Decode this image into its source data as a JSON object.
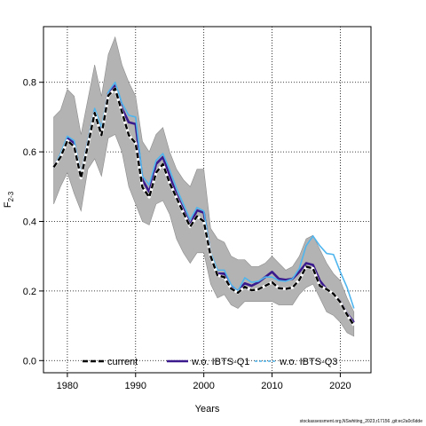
{
  "chart_data": {
    "type": "line",
    "xlabel": "Years",
    "ylabel": "F",
    "ylabel_sub": "2-3",
    "xlim": [
      1976.5,
      2024.5
    ],
    "ylim": [
      -0.035,
      0.96
    ],
    "xticks": [
      1980,
      1990,
      2000,
      2010,
      2020
    ],
    "yticks": [
      0.0,
      0.2,
      0.4,
      0.6,
      0.8
    ],
    "ytick_labels": [
      "0.0",
      "0.2",
      "0.4",
      "0.6",
      "0.8"
    ],
    "grid": true,
    "legend_position": "bottom",
    "x": [
      1978,
      1979,
      1980,
      1981,
      1982,
      1983,
      1984,
      1985,
      1986,
      1987,
      1988,
      1989,
      1990,
      1991,
      1992,
      1993,
      1994,
      1995,
      1996,
      1997,
      1998,
      1999,
      2000,
      2001,
      2002,
      2003,
      2004,
      2005,
      2006,
      2007,
      2008,
      2009,
      2010,
      2011,
      2012,
      2013,
      2014,
      2015,
      2016,
      2017,
      2018,
      2019,
      2020,
      2021,
      2022
    ],
    "band": {
      "upper": [
        0.7,
        0.72,
        0.78,
        0.76,
        0.65,
        0.75,
        0.85,
        0.76,
        0.88,
        0.93,
        0.85,
        0.8,
        0.76,
        0.63,
        0.6,
        0.65,
        0.67,
        0.6,
        0.55,
        0.52,
        0.5,
        0.55,
        0.55,
        0.38,
        0.35,
        0.34,
        0.3,
        0.29,
        0.29,
        0.27,
        0.27,
        0.28,
        0.3,
        0.28,
        0.26,
        0.27,
        0.3,
        0.35,
        0.36,
        0.32,
        0.28,
        0.25,
        0.23,
        0.18,
        0.14
      ],
      "lower": [
        0.45,
        0.5,
        0.54,
        0.48,
        0.43,
        0.55,
        0.58,
        0.53,
        0.64,
        0.65,
        0.6,
        0.5,
        0.45,
        0.4,
        0.39,
        0.45,
        0.46,
        0.42,
        0.35,
        0.31,
        0.28,
        0.31,
        0.31,
        0.22,
        0.18,
        0.19,
        0.16,
        0.15,
        0.17,
        0.17,
        0.17,
        0.17,
        0.17,
        0.16,
        0.16,
        0.16,
        0.19,
        0.21,
        0.22,
        0.18,
        0.14,
        0.13,
        0.11,
        0.08,
        0.07
      ]
    },
    "series": [
      {
        "name": "current",
        "color": "#000000",
        "style": "dashed",
        "values": [
          0.556,
          0.585,
          0.632,
          0.615,
          0.525,
          0.618,
          0.712,
          0.648,
          0.762,
          0.782,
          0.715,
          0.648,
          0.625,
          0.498,
          0.47,
          0.54,
          0.565,
          0.51,
          0.468,
          0.425,
          0.385,
          0.415,
          0.4,
          0.3,
          0.245,
          0.24,
          0.207,
          0.195,
          0.212,
          0.202,
          0.205,
          0.215,
          0.225,
          0.208,
          0.206,
          0.21,
          0.232,
          0.27,
          0.265,
          0.215,
          0.205,
          0.192,
          0.168,
          0.132,
          0.101
        ]
      },
      {
        "name": "w.o. IBTS-Q1",
        "color": "#3a1a8c",
        "style": "solid",
        "values": [
          0.556,
          0.59,
          0.64,
          0.625,
          0.527,
          0.625,
          0.718,
          0.655,
          0.768,
          0.79,
          0.725,
          0.685,
          0.68,
          0.52,
          0.485,
          0.565,
          0.585,
          0.53,
          0.478,
          0.435,
          0.39,
          0.432,
          0.425,
          0.3,
          0.25,
          0.25,
          0.21,
          0.2,
          0.222,
          0.215,
          0.225,
          0.24,
          0.255,
          0.235,
          0.232,
          0.235,
          0.255,
          0.28,
          0.275,
          0.23,
          0.205,
          0.192,
          0.17,
          0.135,
          0.11
        ]
      },
      {
        "name": "w.o. IBTS-Q3",
        "color": "#4fb5ee",
        "style": "solid",
        "values": [
          0.556,
          0.595,
          0.645,
          0.632,
          0.535,
          0.632,
          0.725,
          0.67,
          0.772,
          0.8,
          0.74,
          0.705,
          0.7,
          0.53,
          0.505,
          0.575,
          0.595,
          0.548,
          0.495,
          0.45,
          0.405,
          0.44,
          0.43,
          0.31,
          0.26,
          0.26,
          0.218,
          0.2,
          0.238,
          0.225,
          0.228,
          0.24,
          0.24,
          0.23,
          0.228,
          0.235,
          0.265,
          0.33,
          0.358,
          0.33,
          0.308,
          0.305,
          0.255,
          0.21,
          0.15
        ]
      }
    ]
  },
  "credit": "stockassessment.org,NSwhiting_2023,r17156 ,git:ec2a0c6dde"
}
